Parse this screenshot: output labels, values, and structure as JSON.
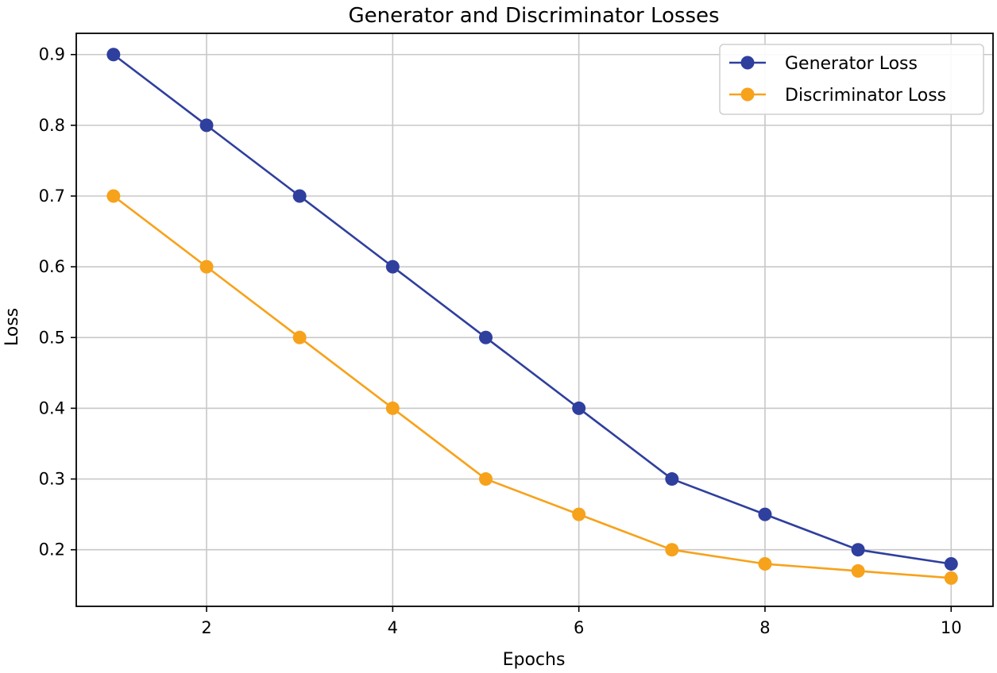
{
  "chart_data": {
    "type": "line",
    "title": "Generator and Discriminator Losses",
    "xlabel": "Epochs",
    "ylabel": "Loss",
    "x": [
      1,
      2,
      3,
      4,
      5,
      6,
      7,
      8,
      9,
      10
    ],
    "xlim": [
      0.6,
      10.45
    ],
    "ylim": [
      0.12,
      0.93
    ],
    "xticks": [
      2,
      4,
      6,
      8,
      10
    ],
    "yticks": [
      0.2,
      0.3,
      0.4,
      0.5,
      0.6,
      0.7,
      0.8,
      0.9
    ],
    "grid": true,
    "legend_position": "top-right",
    "series": [
      {
        "name": "Generator Loss",
        "color": "#2f3f9e",
        "values": [
          0.9,
          0.8,
          0.7,
          0.6,
          0.5,
          0.4,
          0.3,
          0.25,
          0.2,
          0.18
        ]
      },
      {
        "name": "Discriminator Loss",
        "color": "#f7a21b",
        "values": [
          0.7,
          0.6,
          0.5,
          0.4,
          0.3,
          0.25,
          0.2,
          0.18,
          0.17,
          0.16
        ]
      }
    ]
  }
}
